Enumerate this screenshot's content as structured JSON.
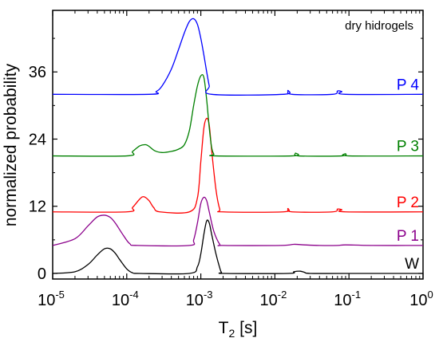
{
  "chart_data": {
    "type": "line",
    "xlabel": "T",
    "xlabel_sub": "2",
    "xlabel_unit": " [s]",
    "ylabel": "normalized probability",
    "annotation": "dry hidrogels",
    "xscale": "log",
    "xlim": [
      1e-05,
      1.0
    ],
    "ylim": [
      -1,
      47
    ],
    "yticks": [
      0,
      12,
      24,
      36
    ],
    "xticks": [
      {
        "mant": "10",
        "exp": "-5",
        "value": 1e-05
      },
      {
        "mant": "10",
        "exp": "-4",
        "value": 0.0001
      },
      {
        "mant": "10",
        "exp": "-3",
        "value": 0.001
      },
      {
        "mant": "10",
        "exp": "-2",
        "value": 0.01
      },
      {
        "mant": "10",
        "exp": "-1",
        "value": 0.1
      },
      {
        "mant": "10",
        "exp": "0",
        "value": 1.0
      }
    ],
    "series": [
      {
        "name": "W",
        "color": "#000000",
        "baseline": 0,
        "x": [
          1e-05,
          2e-05,
          3e-05,
          4e-05,
          5e-05,
          6e-05,
          7e-05,
          8e-05,
          0.0001,
          0.00012,
          0.00015,
          0.0007,
          0.0009,
          0.001,
          0.0011,
          0.0012,
          0.0013,
          0.0014,
          0.0016,
          0.0018,
          0.0019,
          0.0021,
          0.015,
          0.018,
          0.022,
          0.025,
          0.03,
          0.09,
          1.0
        ],
        "y": [
          0,
          0.3,
          1.6,
          3.3,
          4.4,
          4.4,
          3.6,
          2.5,
          0.8,
          0.1,
          0,
          0,
          1.2,
          3.5,
          7.0,
          9.4,
          9.0,
          7.0,
          3.5,
          1.0,
          0.2,
          0,
          0,
          0.3,
          0.4,
          0.2,
          0,
          0,
          0
        ]
      },
      {
        "name": "P 1",
        "color": "#8b008b",
        "baseline": 5,
        "x": [
          1e-05,
          2e-05,
          3e-05,
          4e-05,
          5e-05,
          6e-05,
          7e-05,
          9e-05,
          0.00011,
          0.00014,
          0.0007,
          0.0008,
          0.0009,
          0.001,
          0.0011,
          0.0012,
          0.0013,
          0.0015,
          0.0018,
          0.002,
          0.012,
          0.018,
          0.025,
          0.04,
          0.07,
          0.09,
          0.2,
          1.0
        ],
        "y": [
          5,
          6.2,
          8.5,
          10.1,
          10.4,
          10.0,
          9.0,
          6.8,
          5.3,
          5.0,
          5.0,
          6.0,
          9.0,
          12.5,
          13.6,
          13.0,
          11.0,
          7.5,
          5.2,
          5.0,
          5.0,
          5.2,
          5.1,
          5.0,
          5.0,
          5.1,
          5.0,
          5.0
        ]
      },
      {
        "name": "P 2",
        "color": "#ff0000",
        "baseline": 11,
        "x": [
          1e-05,
          0.0001,
          0.00012,
          0.00015,
          0.00017,
          0.0002,
          0.00023,
          0.00028,
          0.0007,
          0.0009,
          0.001,
          0.0011,
          0.0012,
          0.0013,
          0.0014,
          0.0016,
          0.0018,
          0.002,
          0.013,
          0.015,
          0.017,
          0.06,
          0.07,
          0.08,
          0.09,
          1.0
        ],
        "y": [
          11,
          11,
          11.8,
          13.3,
          13.7,
          13.0,
          11.8,
          11,
          11,
          13.5,
          20.0,
          26.0,
          27.7,
          26.5,
          22.0,
          15.0,
          11.5,
          11,
          11,
          11.6,
          11,
          11,
          11.5,
          11.4,
          11,
          11
        ]
      },
      {
        "name": "P 3",
        "color": "#008000",
        "baseline": 21,
        "x": [
          1e-05,
          0.0001,
          0.00012,
          0.00015,
          0.00018,
          0.0002,
          0.00024,
          0.0003,
          0.0004,
          0.0005,
          0.0006,
          0.0007,
          0.0008,
          0.0009,
          0.001,
          0.0011,
          0.0012,
          0.0013,
          0.0014,
          0.0015,
          0.0016,
          0.017,
          0.019,
          0.021,
          0.08,
          0.09,
          0.1,
          1.0
        ],
        "y": [
          21,
          21,
          21.8,
          22.8,
          23.0,
          22.7,
          21.9,
          21.6,
          21.8,
          22.2,
          23.0,
          25.5,
          30.0,
          33.5,
          35.3,
          35.0,
          31.0,
          26.0,
          22.5,
          21.3,
          21,
          21,
          21.5,
          21,
          21,
          21.4,
          21,
          21
        ]
      },
      {
        "name": "P 4",
        "color": "#0000ff",
        "baseline": 32,
        "x": [
          1e-05,
          0.0002,
          0.00025,
          0.0003,
          0.0004,
          0.0005,
          0.0006,
          0.0007,
          0.0008,
          0.0009,
          0.001,
          0.0011,
          0.0012,
          0.0013,
          0.0014,
          0.013,
          0.015,
          0.017,
          0.06,
          0.07,
          0.08,
          0.09,
          1.0
        ],
        "y": [
          32,
          32,
          32.5,
          33.5,
          36.5,
          40.0,
          43.0,
          45.0,
          45.5,
          44.5,
          42.0,
          39.0,
          36.0,
          33.5,
          32.0,
          32,
          32.7,
          32,
          32,
          32.6,
          32.5,
          32,
          32
        ]
      }
    ]
  }
}
